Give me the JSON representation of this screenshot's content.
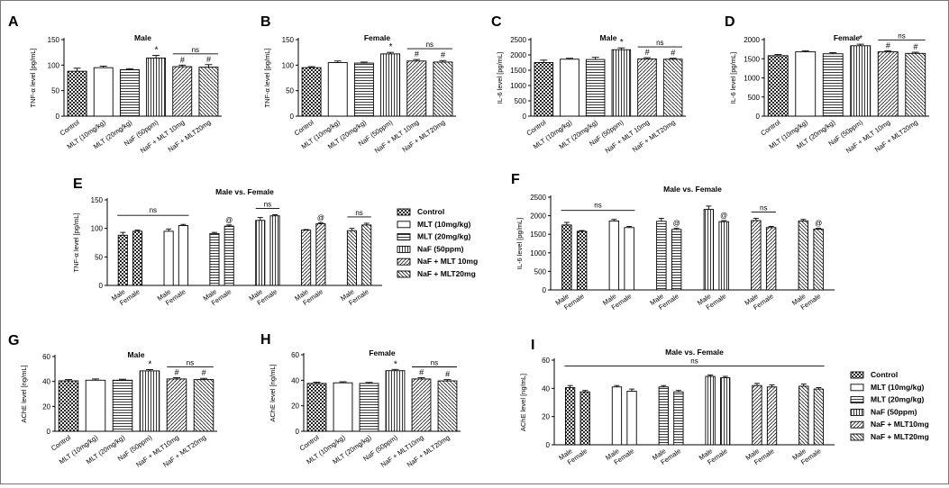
{
  "colors": {
    "bar_fill": "#cfcfcf",
    "dark_fill": "#555555",
    "stroke": "#000000"
  },
  "legend_entries": [
    "Control",
    "MLT (10mg/kg)",
    "MLT (20mg/kg)",
    "NaF (50ppm)",
    "NaF + MLT 10mg",
    "NaF + MLT20mg"
  ],
  "legend_entries_acche": [
    "Control",
    "MLT (10mg/kg)",
    "MLT (20mg/kg)",
    "NaF (50ppm)",
    "NaF + MLT10mg",
    "NaF + MLT20mg"
  ],
  "chart_data": [
    {
      "panel": "A",
      "type": "bar",
      "title": "Male",
      "ylabel": "TNF-α level [pg/mL]",
      "ylim": [
        0,
        150
      ],
      "yticks": [
        0,
        50,
        100,
        150
      ],
      "categories": [
        "Control",
        "MLT (10mg/kg)",
        "MLT (20mg/kg)",
        "NaF (50ppm)",
        "NaF + MLT 10mg",
        "NaF + MLT20mg"
      ],
      "values": [
        88,
        95,
        91,
        114,
        97,
        96
      ],
      "errors": [
        6,
        3,
        2,
        5,
        3,
        5
      ],
      "marks": [
        "",
        "",
        "",
        "*",
        "#",
        "#"
      ],
      "ns": [
        4,
        5
      ]
    },
    {
      "panel": "B",
      "type": "bar",
      "title": "Female",
      "ylabel": "TNF-α level [pg/mL]",
      "ylim": [
        0,
        150
      ],
      "yticks": [
        0,
        50,
        100,
        150
      ],
      "categories": [
        "Control",
        "MLT (10mg/kg)",
        "MLT (20mg/kg)",
        "NaF (50ppm)",
        "NaF + MLT 10mg",
        "NaF + MLT20mg"
      ],
      "values": [
        95,
        105,
        104,
        122,
        108,
        106
      ],
      "errors": [
        2,
        3,
        2,
        3,
        3,
        3
      ],
      "marks": [
        "",
        "",
        "",
        "*",
        "#",
        "#"
      ],
      "ns": [
        4,
        5
      ]
    },
    {
      "panel": "C",
      "type": "bar",
      "title": "Male",
      "ylabel": "IL-6 level [pg/mL]",
      "ylim": [
        0,
        2500
      ],
      "yticks": [
        0,
        500,
        1000,
        1500,
        2000,
        2500
      ],
      "categories": [
        "Control",
        "MLT (10mg/kg)",
        "MLT (20mg/kg)",
        "NaF (50ppm)",
        "NaF + MLT 10mg",
        "NaF + MLT20mg"
      ],
      "values": [
        1750,
        1860,
        1850,
        2170,
        1870,
        1860
      ],
      "errors": [
        80,
        30,
        70,
        60,
        40,
        30
      ],
      "marks": [
        "",
        "",
        "",
        "*",
        "#",
        "#"
      ],
      "ns": [
        4,
        5
      ]
    },
    {
      "panel": "D",
      "type": "bar",
      "title": "Female",
      "ylabel": "IL-6 level [pg/mL]",
      "ylim": [
        0,
        2000
      ],
      "yticks": [
        0,
        500,
        1000,
        1500,
        2000
      ],
      "categories": [
        "Control",
        "MLT (10mg/kg)",
        "MLT (20mg/kg)",
        "NaF (50ppm)",
        "NaF + MLT 10mg",
        "NaF + MLT20mg"
      ],
      "values": [
        1580,
        1680,
        1630,
        1840,
        1680,
        1640
      ],
      "errors": [
        30,
        30,
        30,
        40,
        30,
        30
      ],
      "marks": [
        "",
        "",
        "",
        "*",
        "#",
        "#"
      ],
      "ns": [
        4,
        5
      ]
    },
    {
      "panel": "E",
      "type": "bar",
      "title": "Male vs. Female",
      "ylabel": "TNF-α level [pg/mL]",
      "ylim": [
        0,
        150
      ],
      "yticks": [
        0,
        50,
        100,
        150
      ],
      "categories": [
        "Male",
        "Female"
      ],
      "series": [
        {
          "name": "Control",
          "values": [
            88,
            95
          ],
          "errors": [
            5,
            2
          ]
        },
        {
          "name": "MLT (10mg/kg)",
          "values": [
            95,
            105
          ],
          "errors": [
            4,
            2
          ]
        },
        {
          "name": "MLT (20mg/kg)",
          "values": [
            91,
            104
          ],
          "errors": [
            2,
            2
          ]
        },
        {
          "name": "NaF (50ppm)",
          "values": [
            114,
            122
          ],
          "errors": [
            5,
            2
          ]
        },
        {
          "name": "NaF + MLT 10mg",
          "values": [
            97,
            108
          ],
          "errors": [
            1,
            2
          ]
        },
        {
          "name": "NaF + MLT20mg",
          "values": [
            96,
            106
          ],
          "errors": [
            4,
            3
          ]
        }
      ],
      "marks": [
        "",
        "",
        "@",
        "",
        "@",
        ""
      ],
      "ns_span": [
        0,
        1
      ],
      "ns_groups": [
        3,
        5
      ]
    },
    {
      "panel": "F",
      "type": "bar",
      "title": "Male vs. Female",
      "ylabel": "IL-6 level [pg/mL]",
      "ylim": [
        0,
        2500
      ],
      "yticks": [
        0,
        500,
        1000,
        1500,
        2000,
        2500
      ],
      "categories": [
        "Male",
        "Female"
      ],
      "series": [
        {
          "name": "Control",
          "values": [
            1750,
            1580
          ],
          "errors": [
            70,
            20
          ]
        },
        {
          "name": "MLT (10mg/kg)",
          "values": [
            1860,
            1680
          ],
          "errors": [
            40,
            30
          ]
        },
        {
          "name": "MLT (20mg/kg)",
          "values": [
            1850,
            1630
          ],
          "errors": [
            80,
            30
          ]
        },
        {
          "name": "NaF (50ppm)",
          "values": [
            2170,
            1840
          ],
          "errors": [
            90,
            30
          ]
        },
        {
          "name": "NaF + MLT 10mg",
          "values": [
            1870,
            1680
          ],
          "errors": [
            60,
            30
          ]
        },
        {
          "name": "NaF + MLT20mg",
          "values": [
            1860,
            1640
          ],
          "errors": [
            40,
            20
          ]
        }
      ],
      "marks": [
        "",
        "",
        "@",
        "@",
        "",
        "@"
      ],
      "ns_span": [
        0,
        1
      ],
      "ns_groups": [
        4
      ]
    },
    {
      "panel": "G",
      "type": "bar",
      "title": "Male",
      "ylabel": "AChE level [ng/mL]",
      "ylim": [
        0,
        60
      ],
      "yticks": [
        0,
        20,
        40,
        60
      ],
      "categories": [
        "Control",
        "MLT (10mg/kg)",
        "MLT (20mg/kg)",
        "NaF (50ppm)",
        "NaF + MLT10mg",
        "NaF + MLT20mg"
      ],
      "values": [
        40.5,
        41,
        41,
        48.5,
        42,
        41.5
      ],
      "errors": [
        1,
        1,
        0.8,
        1,
        1,
        1
      ],
      "marks": [
        "",
        "",
        "",
        "*",
        "#",
        "#"
      ],
      "ns": [
        4,
        5
      ]
    },
    {
      "panel": "H",
      "type": "bar",
      "title": "Female",
      "ylabel": "AChE level [ng/mL]",
      "ylim": [
        0,
        60
      ],
      "yticks": [
        0,
        20,
        40,
        60
      ],
      "categories": [
        "Control",
        "MLT (10mg/kg)",
        "MLT (20mg/kg)",
        "NaF (50ppm)",
        "NaF + MLT10mg",
        "NaF + MLT20mg"
      ],
      "values": [
        37.5,
        38,
        37.5,
        47.5,
        41,
        39.5
      ],
      "errors": [
        1,
        0.8,
        0.8,
        1,
        1,
        1
      ],
      "marks": [
        "",
        "",
        "",
        "*",
        "#",
        "#"
      ],
      "ns": [
        4,
        5
      ]
    },
    {
      "panel": "I",
      "type": "bar",
      "title": "Male vs. Female",
      "ylabel": "AChE level [ng/mL]",
      "ylim": [
        0,
        60
      ],
      "yticks": [
        0,
        20,
        40,
        60
      ],
      "categories": [
        "Male",
        "Female"
      ],
      "series": [
        {
          "name": "Control",
          "values": [
            40.5,
            37.5
          ],
          "errors": [
            1.5,
            1
          ]
        },
        {
          "name": "MLT (10mg/kg)",
          "values": [
            41,
            38
          ],
          "errors": [
            1,
            1.5
          ]
        },
        {
          "name": "MLT (20mg/kg)",
          "values": [
            41,
            37.5
          ],
          "errors": [
            1,
            1
          ]
        },
        {
          "name": "NaF (50ppm)",
          "values": [
            48.5,
            47.5
          ],
          "errors": [
            1,
            1
          ]
        },
        {
          "name": "NaF + MLT10mg",
          "values": [
            42,
            41
          ],
          "errors": [
            1.5,
            1.5
          ]
        },
        {
          "name": "NaF + MLT20mg",
          "values": [
            41.5,
            39.5
          ],
          "errors": [
            1.5,
            1
          ]
        }
      ],
      "marks": [
        "",
        "",
        "",
        "",
        "",
        ""
      ],
      "ns_span": [
        0,
        5
      ],
      "ns_groups": []
    }
  ]
}
